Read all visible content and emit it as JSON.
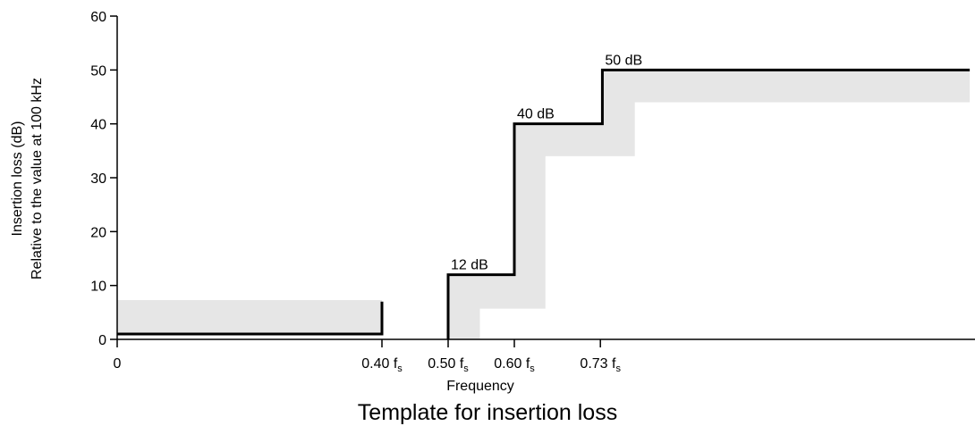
{
  "chart_data": {
    "type": "line",
    "title": "Template for insertion loss",
    "xlabel": "Frequency",
    "ylabel_lines": [
      "Insertion loss (dB)",
      "Relative to the value at 100 kHz"
    ],
    "ylim": [
      0,
      60
    ],
    "yticks": [
      0,
      10,
      20,
      30,
      40,
      50,
      60
    ],
    "xticks": [
      {
        "value": 0,
        "label": "0",
        "sub": ""
      },
      {
        "value": 0.4,
        "label": "0.40 f",
        "sub": "s"
      },
      {
        "value": 0.5,
        "label": "0.50 f",
        "sub": "s"
      },
      {
        "value": 0.6,
        "label": "0.60 f",
        "sub": "s"
      },
      {
        "value": 0.73,
        "label": "0.73 f",
        "sub": "s"
      }
    ],
    "grid": false,
    "series": [
      {
        "role": "limit-line",
        "color": "#000000",
        "segments": [
          [
            [
              0,
              1
            ],
            [
              0.4,
              1
            ],
            [
              0.4,
              7
            ]
          ],
          [
            [
              0.5,
              0
            ],
            [
              0.5,
              12
            ],
            [
              0.6,
              12
            ],
            [
              0.6,
              40
            ],
            [
              0.733,
              40
            ],
            [
              0.733,
              50
            ],
            [
              1.288,
              50
            ]
          ]
        ]
      },
      {
        "role": "tolerance-band",
        "color": "#e6e6e6",
        "regions": [
          [
            [
              0,
              1
            ],
            [
              0.4,
              1
            ],
            [
              0.4,
              7.3
            ],
            [
              0,
              7.3
            ]
          ],
          [
            [
              0.5,
              0
            ],
            [
              0.5,
              12
            ],
            [
              0.6,
              12
            ],
            [
              0.6,
              40
            ],
            [
              0.733,
              40
            ],
            [
              0.733,
              50
            ],
            [
              1.288,
              50
            ],
            [
              1.288,
              44
            ],
            [
              0.782,
              44
            ],
            [
              0.782,
              34
            ],
            [
              0.647,
              34
            ],
            [
              0.647,
              5.7
            ],
            [
              0.548,
              5.7
            ],
            [
              0.548,
              0
            ]
          ]
        ]
      }
    ],
    "annotations": [
      {
        "text": "12 dB",
        "x": 0.5,
        "y": 12
      },
      {
        "text": "40 dB",
        "x": 0.6,
        "y": 40
      },
      {
        "text": "50 dB",
        "x": 0.733,
        "y": 50
      }
    ]
  }
}
